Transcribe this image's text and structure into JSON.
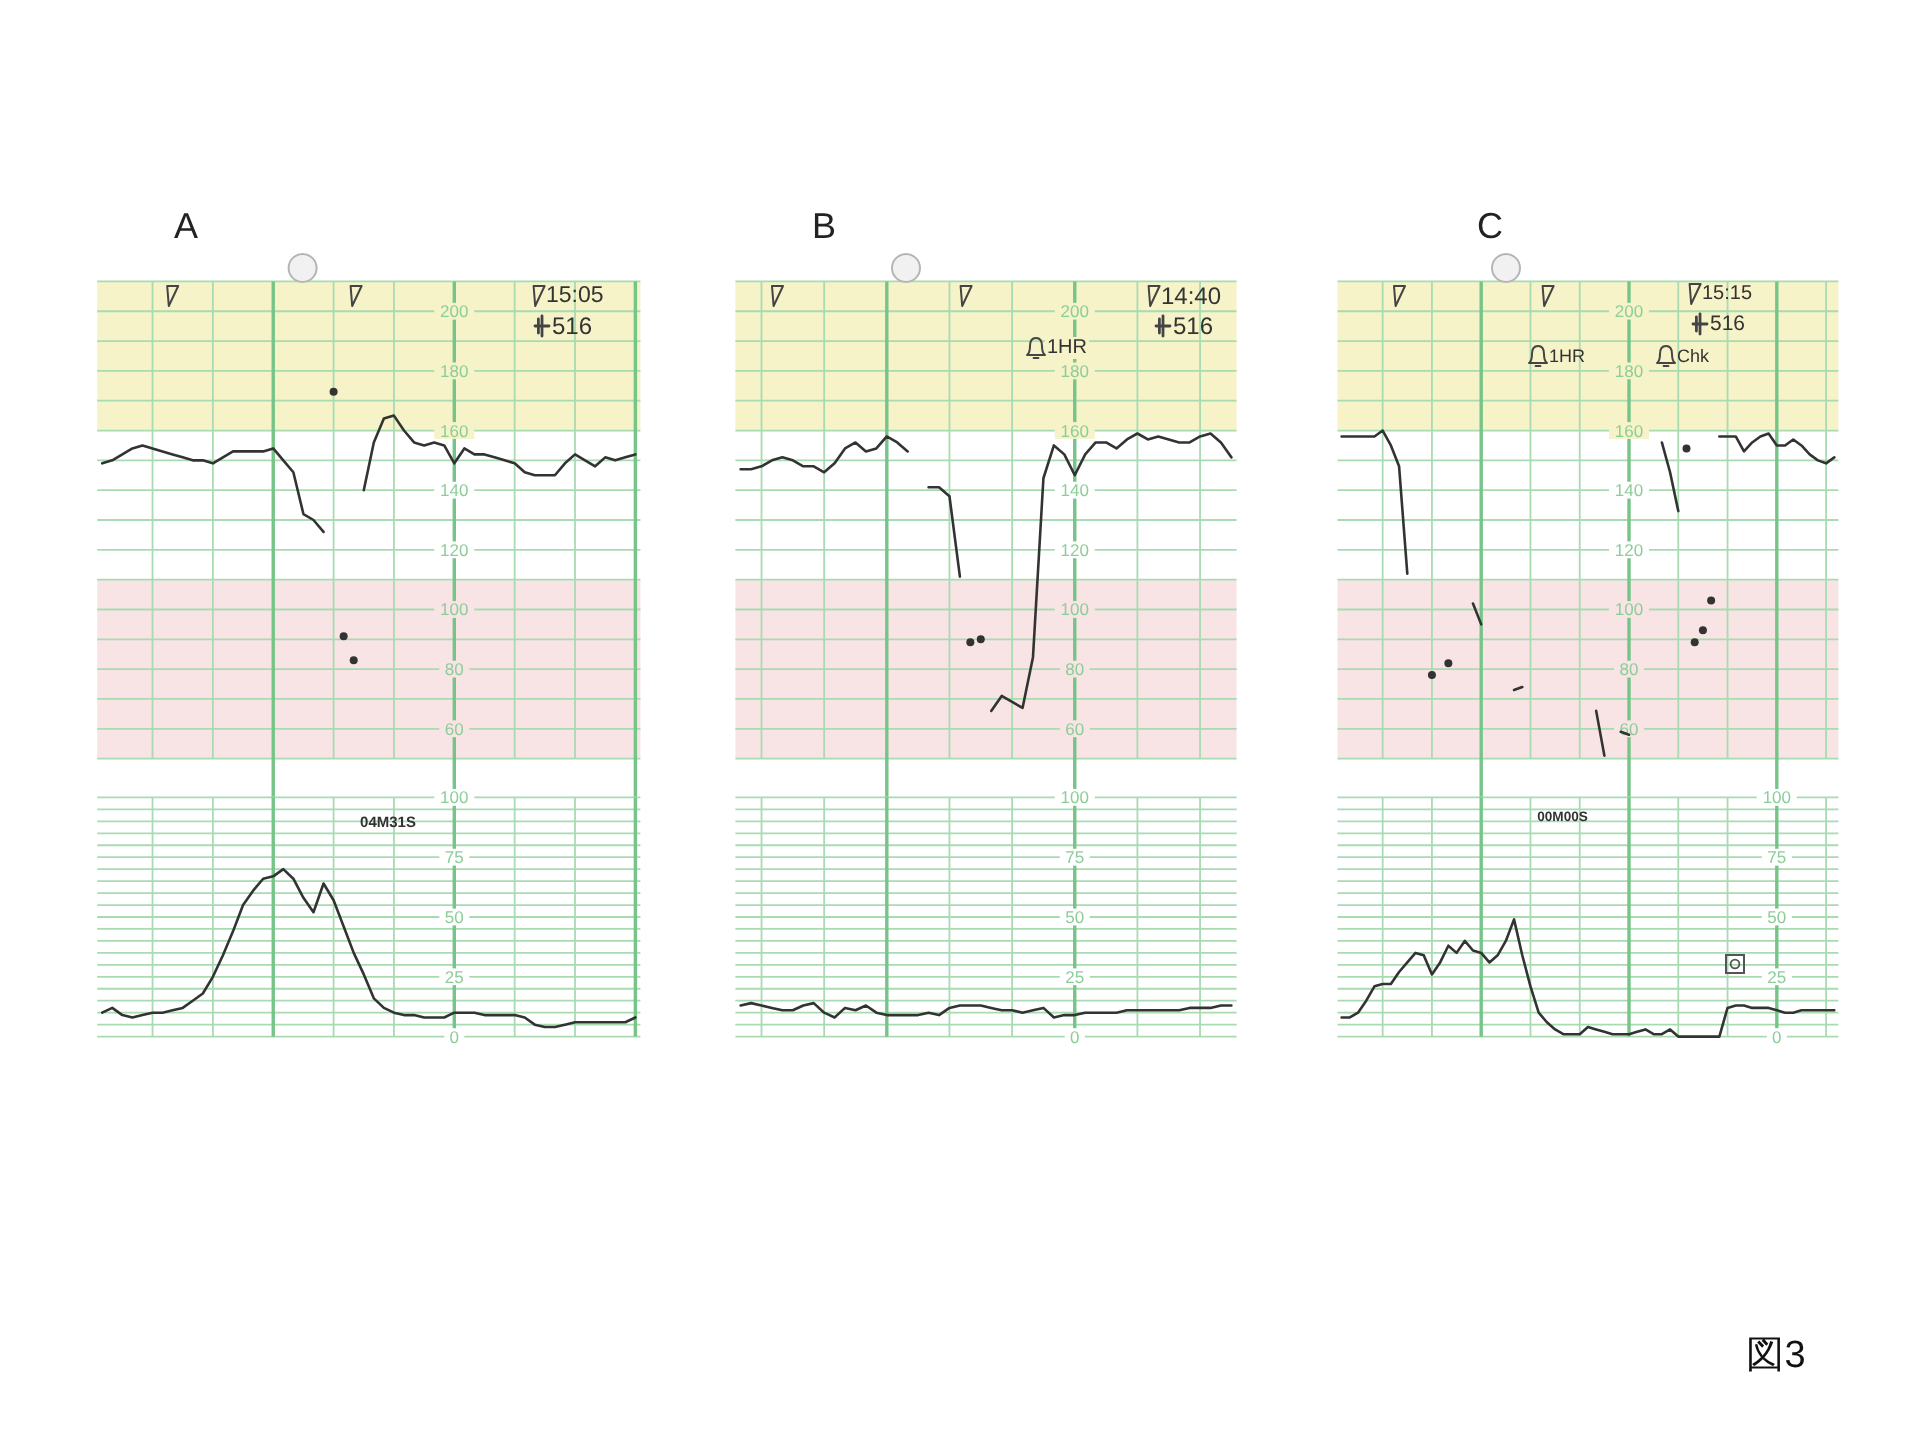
{
  "chart_data": [
    {
      "type": "line",
      "title": "A",
      "categories": [
        null,
        null,
        null,
        null,
        null,
        null,
        null,
        null,
        null,
        null,
        null,
        null,
        null,
        null,
        null,
        null,
        null,
        null,
        null,
        null,
        null,
        null,
        null,
        null,
        null,
        null,
        null,
        null,
        null,
        null,
        null,
        null,
        null,
        null,
        null,
        null,
        null,
        null,
        null,
        null,
        null,
        null,
        null,
        null,
        null,
        null,
        null,
        null,
        null,
        null,
        null,
        null,
        null,
        null
      ],
      "series": [
        {
          "type": "line",
          "color": "#333333",
          "values": [
            149,
            150,
            152,
            154,
            155,
            154,
            153,
            152,
            151,
            150,
            150,
            149,
            151,
            153,
            153,
            153,
            153,
            154,
            150,
            146,
            132,
            130,
            126,
            null,
            null,
            null,
            null,
            null,
            null,
            null,
            null,
            null,
            null,
            null,
            null,
            null,
            null,
            null,
            null,
            null,
            null,
            null,
            null,
            null,
            null,
            null,
            null,
            null,
            null,
            null,
            null,
            null,
            null,
            null
          ]
        },
        {
          "type": "line",
          "color": "#333333",
          "values": [
            null,
            null,
            null,
            null,
            null,
            null,
            null,
            null,
            null,
            null,
            null,
            null,
            null,
            null,
            null,
            null,
            null,
            null,
            null,
            null,
            null,
            null,
            null,
            null,
            null,
            null,
            140,
            156,
            164,
            165,
            160,
            156,
            155,
            156,
            155,
            149,
            154,
            152,
            152,
            151,
            150,
            149,
            146,
            145,
            145,
            145,
            149,
            152,
            150,
            148,
            151,
            150,
            151,
            152
          ]
        },
        {
          "type": "scatter",
          "color": "#333333",
          "values": [
            null,
            null,
            null,
            null,
            null,
            null,
            null,
            null,
            null,
            null,
            null,
            null,
            null,
            null,
            null,
            null,
            null,
            null,
            null,
            null,
            null,
            null,
            null,
            173,
            91,
            83,
            null,
            null,
            null,
            null,
            null,
            null,
            null,
            null,
            null,
            null,
            null,
            null,
            null,
            null,
            null,
            null,
            null,
            null,
            null,
            null,
            null,
            null,
            null,
            null,
            null,
            null,
            null,
            null
          ]
        }
      ],
      "ylim": [
        50,
        210
      ],
      "yticks": [
        {
          "value": 50,
          "label": null
        },
        60,
        {
          "value": 70,
          "label": null
        },
        80,
        {
          "value": 90,
          "label": null
        },
        100,
        {
          "value": 110,
          "label": null
        },
        120,
        {
          "value": 130,
          "label": null
        },
        140,
        {
          "value": 150,
          "label": null
        },
        160,
        {
          "value": 170,
          "label": null
        },
        180,
        {
          "value": 190,
          "label": null
        },
        200,
        {
          "value": 210,
          "label": null
        }
      ],
      "tick_labels": "y",
      "grid": true,
      "bands": [
        {
          "axis": "y",
          "from": 160,
          "to": 210,
          "color": "#f6f3c8"
        },
        {
          "axis": "y",
          "from": 50,
          "to": 110,
          "color": "#f8e4e4"
        }
      ],
      "annotations": [
        "15:05",
        "516"
      ]
    },
    {
      "type": "line",
      "categories": [
        null,
        null,
        null,
        null,
        null,
        null,
        null,
        null,
        null,
        null,
        null,
        null,
        null,
        null,
        null,
        null,
        null,
        null,
        null,
        null,
        null,
        null,
        null,
        null,
        null,
        null,
        null,
        null,
        null,
        null,
        null,
        null,
        null,
        null,
        null,
        null,
        null,
        null,
        null,
        null,
        null,
        null,
        null,
        null,
        null,
        null,
        null,
        null,
        null,
        null,
        null,
        null,
        null,
        null
      ],
      "values": [
        10,
        12,
        9,
        8,
        9,
        10,
        10,
        11,
        12,
        15,
        18,
        25,
        34,
        44,
        55,
        61,
        66,
        67,
        70,
        66,
        58,
        52,
        64,
        57,
        46,
        35,
        26,
        16,
        12,
        10,
        9,
        9,
        8,
        8,
        8,
        10,
        10,
        10,
        9,
        9,
        9,
        9,
        8,
        5,
        4,
        4,
        5,
        6,
        6,
        6,
        6,
        6,
        6,
        8
      ],
      "color": "#333333",
      "ylim": [
        0,
        100
      ],
      "yticks": [
        0,
        {
          "value": 5,
          "label": null
        },
        {
          "value": 10,
          "label": null
        },
        {
          "value": 15,
          "label": null
        },
        {
          "value": 20,
          "label": null
        },
        25,
        {
          "value": 30,
          "label": null
        },
        {
          "value": 35,
          "label": null
        },
        {
          "value": 40,
          "label": null
        },
        {
          "value": 45,
          "label": null
        },
        50,
        {
          "value": 55,
          "label": null
        },
        {
          "value": 60,
          "label": null
        },
        {
          "value": 65,
          "label": null
        },
        {
          "value": 70,
          "label": null
        },
        75,
        {
          "value": 80,
          "label": null
        },
        {
          "value": 85,
          "label": null
        },
        {
          "value": 90,
          "label": null
        },
        {
          "value": 95,
          "label": null
        },
        100
      ],
      "tick_labels": "y",
      "grid": true,
      "annotations": [
        "04M31S"
      ]
    },
    {
      "type": "line",
      "title": "B",
      "categories": [
        null,
        null,
        null,
        null,
        null,
        null,
        null,
        null,
        null,
        null,
        null,
        null,
        null,
        null,
        null,
        null,
        null,
        null,
        null,
        null,
        null,
        null,
        null,
        null,
        null,
        null,
        null,
        null,
        null,
        null,
        null,
        null,
        null,
        null,
        null,
        null,
        null,
        null,
        null,
        null,
        null,
        null,
        null,
        null,
        null,
        null,
        null,
        null
      ],
      "series": [
        {
          "type": "line",
          "color": "#333333",
          "values": [
            147,
            147,
            148,
            150,
            151,
            150,
            148,
            148,
            146,
            149,
            154,
            156,
            153,
            154,
            158,
            156,
            153,
            null,
            141,
            141,
            138,
            111,
            null,
            null,
            66,
            71,
            69,
            67,
            84,
            144,
            155,
            152,
            145,
            152,
            156,
            156,
            154,
            157,
            159,
            157,
            158,
            157,
            156,
            156,
            158,
            159,
            156,
            151
          ]
        },
        {
          "type": "scatter",
          "color": "#333333",
          "values": [
            null,
            null,
            null,
            null,
            null,
            null,
            null,
            null,
            null,
            null,
            null,
            null,
            null,
            null,
            null,
            null,
            null,
            null,
            null,
            null,
            null,
            null,
            89,
            90,
            null,
            null,
            null,
            null,
            null,
            null,
            null,
            null,
            null,
            null,
            null,
            null,
            null,
            null,
            null,
            null,
            null,
            null,
            null,
            null,
            null,
            null,
            null,
            null
          ]
        }
      ],
      "ylim": [
        50,
        210
      ],
      "yticks": [
        {
          "value": 50,
          "label": null
        },
        60,
        {
          "value": 70,
          "label": null
        },
        80,
        {
          "value": 90,
          "label": null
        },
        100,
        {
          "value": 110,
          "label": null
        },
        120,
        {
          "value": 130,
          "label": null
        },
        140,
        {
          "value": 150,
          "label": null
        },
        160,
        {
          "value": 170,
          "label": null
        },
        180,
        {
          "value": 190,
          "label": null
        },
        200,
        {
          "value": 210,
          "label": null
        }
      ],
      "tick_labels": "y",
      "grid": true,
      "bands": [
        {
          "axis": "y",
          "from": 160,
          "to": 210,
          "color": "#f6f3c8"
        },
        {
          "axis": "y",
          "from": 50,
          "to": 110,
          "color": "#f8e4e4"
        }
      ],
      "annotations": [
        "14:40",
        "516",
        "1HR"
      ]
    },
    {
      "type": "line",
      "categories": [
        null,
        null,
        null,
        null,
        null,
        null,
        null,
        null,
        null,
        null,
        null,
        null,
        null,
        null,
        null,
        null,
        null,
        null,
        null,
        null,
        null,
        null,
        null,
        null,
        null,
        null,
        null,
        null,
        null,
        null,
        null,
        null,
        null,
        null,
        null,
        null,
        null,
        null,
        null,
        null,
        null,
        null,
        null,
        null,
        null,
        null,
        null,
        null
      ],
      "values": [
        13,
        14,
        13,
        12,
        11,
        11,
        13,
        14,
        10,
        8,
        12,
        11,
        13,
        10,
        9,
        9,
        9,
        9,
        10,
        9,
        12,
        13,
        13,
        13,
        12,
        11,
        11,
        10,
        11,
        12,
        8,
        9,
        9,
        10,
        10,
        10,
        10,
        11,
        11,
        11,
        11,
        11,
        11,
        12,
        12,
        12,
        13,
        13
      ],
      "color": "#333333",
      "ylim": [
        0,
        100
      ],
      "yticks": [
        0,
        {
          "value": 5,
          "label": null
        },
        {
          "value": 10,
          "label": null
        },
        {
          "value": 15,
          "label": null
        },
        {
          "value": 20,
          "label": null
        },
        25,
        {
          "value": 30,
          "label": null
        },
        {
          "value": 35,
          "label": null
        },
        {
          "value": 40,
          "label": null
        },
        {
          "value": 45,
          "label": null
        },
        50,
        {
          "value": 55,
          "label": null
        },
        {
          "value": 60,
          "label": null
        },
        {
          "value": 65,
          "label": null
        },
        {
          "value": 70,
          "label": null
        },
        75,
        {
          "value": 80,
          "label": null
        },
        {
          "value": 85,
          "label": null
        },
        {
          "value": 90,
          "label": null
        },
        {
          "value": 95,
          "label": null
        },
        100
      ],
      "tick_labels": "y",
      "grid": true
    },
    {
      "type": "line",
      "title": "C",
      "categories": [
        null,
        null,
        null,
        null,
        null,
        null,
        null,
        null,
        null,
        null,
        null,
        null,
        null,
        null,
        null,
        null,
        null,
        null,
        null,
        null,
        null,
        null,
        null,
        null,
        null,
        null,
        null,
        null,
        null,
        null,
        null,
        null,
        null,
        null,
        null,
        null,
        null,
        null,
        null,
        null,
        null,
        null,
        null,
        null,
        null,
        null,
        null,
        null,
        null,
        null,
        null,
        null,
        null,
        null,
        null,
        null,
        null,
        null,
        null,
        null,
        null
      ],
      "series": [
        {
          "type": "line",
          "color": "#333333",
          "values": [
            158,
            158,
            158,
            158,
            158,
            160,
            155,
            148,
            112,
            null,
            null,
            null,
            null,
            null,
            null,
            null,
            102,
            95,
            null,
            null,
            null,
            73,
            74,
            null,
            null,
            null,
            null,
            null,
            null,
            null,
            null,
            66,
            51,
            null,
            59,
            58,
            null,
            null,
            null,
            156,
            146,
            133,
            null,
            null,
            null,
            null,
            158,
            158,
            158,
            153,
            156,
            158,
            159,
            155,
            155,
            157,
            155,
            152,
            150,
            149,
            151
          ]
        },
        {
          "type": "scatter",
          "color": "#333333",
          "values": [
            null,
            null,
            null,
            null,
            null,
            null,
            null,
            null,
            null,
            null,
            null,
            78,
            null,
            82,
            null,
            null,
            null,
            null,
            null,
            null,
            null,
            null,
            null,
            null,
            null,
            null,
            null,
            null,
            null,
            null,
            null,
            null,
            null,
            null,
            null,
            null,
            null,
            null,
            null,
            null,
            null,
            null,
            154,
            89,
            93,
            103,
            null,
            null,
            null,
            null,
            null,
            null,
            null,
            null,
            null,
            null,
            null,
            null,
            null,
            null,
            null
          ]
        }
      ],
      "ylim": [
        50,
        210
      ],
      "yticks": [
        {
          "value": 50,
          "label": null
        },
        60,
        {
          "value": 70,
          "label": null
        },
        80,
        {
          "value": 90,
          "label": null
        },
        100,
        {
          "value": 110,
          "label": null
        },
        120,
        {
          "value": 130,
          "label": null
        },
        140,
        {
          "value": 150,
          "label": null
        },
        160,
        {
          "value": 170,
          "label": null
        },
        180,
        {
          "value": 190,
          "label": null
        },
        200,
        {
          "value": 210,
          "label": null
        }
      ],
      "tick_labels": "y",
      "grid": true,
      "bands": [
        {
          "axis": "y",
          "from": 160,
          "to": 210,
          "color": "#f6f3c8"
        },
        {
          "axis": "y",
          "from": 50,
          "to": 110,
          "color": "#f8e4e4"
        }
      ],
      "annotations": [
        "15:15",
        "516",
        "1HR",
        "Chk"
      ]
    },
    {
      "type": "line",
      "categories": [
        null,
        null,
        null,
        null,
        null,
        null,
        null,
        null,
        null,
        null,
        null,
        null,
        null,
        null,
        null,
        null,
        null,
        null,
        null,
        null,
        null,
        null,
        null,
        null,
        null,
        null,
        null,
        null,
        null,
        null,
        null,
        null,
        null,
        null,
        null,
        null,
        null,
        null,
        null,
        null,
        null,
        null,
        null,
        null,
        null,
        null,
        null,
        null,
        null,
        null,
        null,
        null,
        null,
        null,
        null,
        null,
        null,
        null,
        null,
        null,
        null
      ],
      "values": [
        8,
        8,
        10,
        15,
        21,
        22,
        22,
        27,
        31,
        35,
        34,
        26,
        31,
        38,
        35,
        40,
        36,
        35,
        31,
        34,
        40,
        49,
        34,
        21,
        10,
        6,
        3,
        1,
        1,
        1,
        4,
        3,
        2,
        1,
        1,
        1,
        2,
        3,
        1,
        1,
        3,
        0,
        0,
        0,
        0,
        0,
        0,
        12,
        13,
        13,
        12,
        12,
        12,
        11,
        10,
        10,
        11,
        11,
        11,
        11,
        11
      ],
      "color": "#333333",
      "ylim": [
        0,
        100
      ],
      "yticks": [
        0,
        {
          "value": 5,
          "label": null
        },
        {
          "value": 10,
          "label": null
        },
        {
          "value": 15,
          "label": null
        },
        {
          "value": 20,
          "label": null
        },
        25,
        {
          "value": 30,
          "label": null
        },
        {
          "value": 35,
          "label": null
        },
        {
          "value": 40,
          "label": null
        },
        {
          "value": 45,
          "label": null
        },
        50,
        {
          "value": 55,
          "label": null
        },
        {
          "value": 60,
          "label": null
        },
        {
          "value": 65,
          "label": null
        },
        {
          "value": 70,
          "label": null
        },
        75,
        {
          "value": 80,
          "label": null
        },
        {
          "value": 85,
          "label": null
        },
        {
          "value": 90,
          "label": null
        },
        {
          "value": 95,
          "label": null
        },
        100
      ],
      "tick_labels": "y",
      "grid": true,
      "annotations": [
        "00M00S"
      ]
    },
    {
      "type": "other",
      "title": "図3"
    }
  ]
}
